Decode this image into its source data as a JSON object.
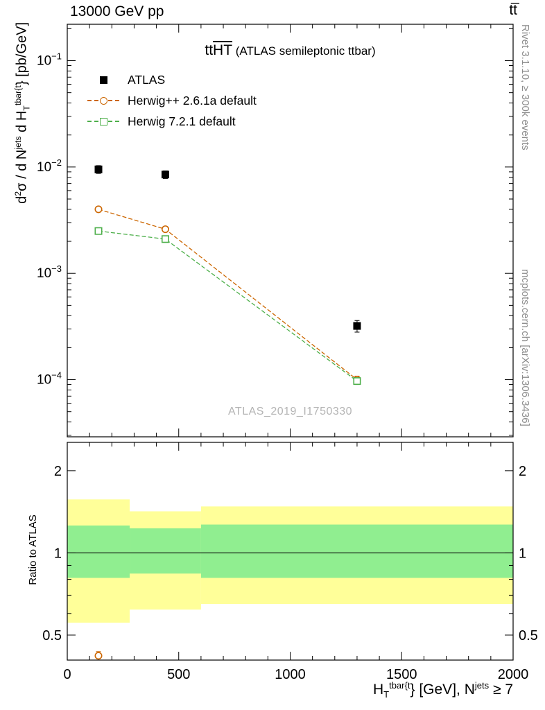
{
  "header": {
    "left": "13000 GeV pp",
    "right": "tt̅"
  },
  "panel_title": {
    "prefix": "tt",
    "overline": "HT",
    "suffix": " (ATLAS semileptonic ttbar)"
  },
  "watermark": "ATLAS_2019_I1750330",
  "side_notes": {
    "top_right": "Rivet 3.1.10, ≥ 300k events",
    "bottom_right": "mcplots.cern.ch [arXiv:1306.3436]"
  },
  "legend": [
    {
      "label": "ATLAS",
      "marker": "square-filled",
      "color": "#000000"
    },
    {
      "label": "Herwig++ 2.6.1a default",
      "marker": "circle-open",
      "color": "#cc6600"
    },
    {
      "label": "Herwig 7.2.1 default",
      "marker": "square-open",
      "color": "#4daf4a"
    }
  ],
  "axes": {
    "ratio_ylabel": "Ratio to ATLAS",
    "ylabel_parts": [
      {
        "t": "d"
      },
      {
        "t": "2",
        "style": "sup"
      },
      {
        "t": "σ / d N"
      },
      {
        "t": "jets",
        "style": "sup"
      },
      {
        "t": " d H"
      },
      {
        "t": "T",
        "style": "sub"
      },
      {
        "t": "tbar{t",
        "style": "sup"
      },
      {
        "t": "} [pb/GeV]"
      }
    ],
    "xlabel_parts": [
      {
        "t": "H"
      },
      {
        "t": "T",
        "style": "sub"
      },
      {
        "t": "tbar{t",
        "style": "sup"
      },
      {
        "t": "} [GeV], N"
      },
      {
        "t": "jets",
        "style": "sup"
      },
      {
        "t": " ≥ 7"
      }
    ]
  },
  "chart_data": {
    "type": "scatter",
    "title": "ttHT (ATLAS semileptonic ttbar)",
    "xlabel": "HT^{tbar{t}} [GeV], Njets >= 7",
    "ylabel": "d2sigma / dNjets dHT^{tbar{t}} [pb/GeV]",
    "x_range": [
      0,
      2000
    ],
    "y_range": [
      2.9e-05,
      0.22
    ],
    "y_scale": "log",
    "ratio_y_scale": "log",
    "ratio_y_range": [
      0.405,
      2.54
    ],
    "x_ticks": [
      0,
      500,
      1000,
      1500,
      2000
    ],
    "x_minor_step": 100,
    "y_tick_exponents": [
      -1,
      -2,
      -3,
      -4
    ],
    "ratio_ticks": [
      0.5,
      1,
      2
    ],
    "ratio_minor_ticks": [
      0.6,
      0.7,
      0.8,
      0.9
    ],
    "series": [
      {
        "name": "ATLAS",
        "marker": "square-filled",
        "color": "#000000",
        "line": "none",
        "points": [
          {
            "x": 140,
            "y": 0.0095,
            "yerr": 0.0008
          },
          {
            "x": 440,
            "y": 0.0085,
            "yerr": 0.0007
          },
          {
            "x": 1300,
            "y": 0.00032,
            "yerr": 4e-05
          }
        ]
      },
      {
        "name": "Herwig++ 2.6.1a default",
        "marker": "circle-open",
        "color": "#cc6600",
        "line": "dashed",
        "points": [
          {
            "x": 140,
            "y": 0.004,
            "yerr": 0.00015
          },
          {
            "x": 440,
            "y": 0.0026,
            "yerr": 0.0001
          },
          {
            "x": 1300,
            "y": 0.0001,
            "yerr": 8e-06
          }
        ]
      },
      {
        "name": "Herwig 7.2.1 default",
        "marker": "square-open",
        "color": "#4daf4a",
        "line": "dashed",
        "points": [
          {
            "x": 140,
            "y": 0.0025,
            "yerr": 0.0001
          },
          {
            "x": 440,
            "y": 0.0021,
            "yerr": 8e-05
          },
          {
            "x": 1300,
            "y": 9.7e-05,
            "yerr": 7e-06
          }
        ]
      }
    ],
    "ratio": {
      "baseline": 1,
      "band_colors": {
        "yellow": "#ffff99",
        "green": "#90ee90"
      },
      "bands": [
        {
          "x0": 0,
          "x1": 280,
          "yellow": [
            0.555,
            1.57
          ],
          "green": [
            0.81,
            1.26
          ]
        },
        {
          "x0": 280,
          "x1": 600,
          "yellow": [
            0.62,
            1.42
          ],
          "green": [
            0.84,
            1.23
          ]
        },
        {
          "x0": 600,
          "x1": 2000,
          "yellow": [
            0.65,
            1.48
          ],
          "green": [
            0.81,
            1.27
          ]
        }
      ],
      "points": [
        {
          "series_index": 1,
          "x": 140,
          "y": 0.42,
          "yerr": 0.015
        }
      ]
    }
  }
}
